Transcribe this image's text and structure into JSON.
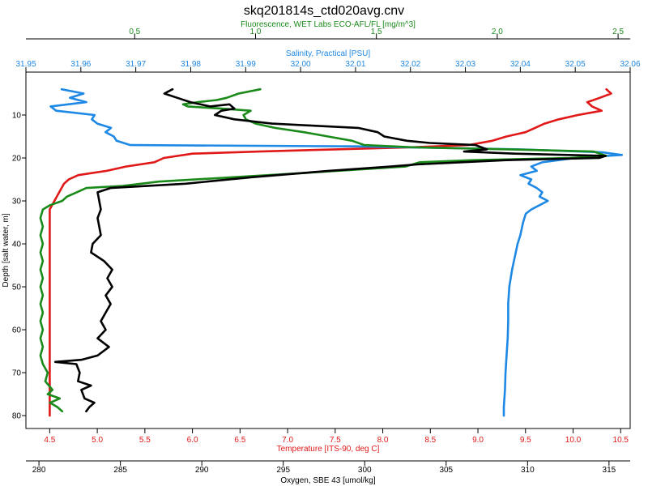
{
  "chart_data": {
    "type": "line",
    "title": "skq201814s_ctd020avg.cnv",
    "colors": {
      "fluorescence": "#1a8a1a",
      "salinity": "#1e88e5",
      "temperature": "#e01818",
      "oxygen": "#000000"
    },
    "axes": {
      "depth": {
        "label": "Depth [salt water, m]",
        "range": [
          0,
          83
        ],
        "reversed": true,
        "ticks": [
          10,
          20,
          30,
          40,
          50,
          60,
          70,
          80
        ],
        "tick_labels": [
          "10",
          "20",
          "30",
          "40",
          "50",
          "60",
          "70",
          "80"
        ]
      },
      "fluorescence": {
        "label": "Fluorescence, WET Labs ECO-AFL/FL [mg/m^3]",
        "range": [
          0.05,
          2.55
        ],
        "ticks": [
          0.5,
          1.0,
          1.5,
          2.0,
          2.5
        ],
        "tick_labels": [
          "0.5",
          "1.0",
          "1.5",
          "2.0",
          "2.5"
        ]
      },
      "salinity": {
        "label": "Salinity, Practical [PSU]",
        "range": [
          31.95,
          32.06
        ],
        "ticks": [
          31.95,
          31.96,
          31.97,
          31.98,
          31.99,
          32.0,
          32.01,
          32.02,
          32.03,
          32.04,
          32.05,
          32.06
        ],
        "tick_labels": [
          "31.95",
          "31.96",
          "31.97",
          "31.98",
          "31.99",
          "32.00",
          "32.01",
          "32.02",
          "32.03",
          "32.04",
          "32.05",
          "32.06"
        ]
      },
      "temperature": {
        "label": "Temperature [ITS-90, deg C]",
        "range": [
          4.25,
          10.6
        ],
        "ticks": [
          4.5,
          5.0,
          5.5,
          6.0,
          6.5,
          7.0,
          7.5,
          8.0,
          8.5,
          9.0,
          9.5,
          10.0,
          10.5
        ],
        "tick_labels": [
          "4.5",
          "5.0",
          "5.5",
          "6.0",
          "6.5",
          "7.0",
          "7.5",
          "8.0",
          "8.5",
          "9.0",
          "9.5",
          "10.0",
          "10.5"
        ]
      },
      "oxygen": {
        "label": "Oxygen, SBE 43 [umol/kg]",
        "range": [
          279.2,
          316.3
        ],
        "ticks": [
          280,
          285,
          290,
          295,
          300,
          305,
          310,
          315
        ],
        "tick_labels": [
          "280",
          "285",
          "290",
          "295",
          "300",
          "305",
          "310",
          "315"
        ]
      }
    },
    "series": [
      {
        "key": "temperature",
        "points": [
          [
            10.35,
            4
          ],
          [
            10.4,
            5
          ],
          [
            10.28,
            6
          ],
          [
            10.15,
            7
          ],
          [
            10.2,
            8
          ],
          [
            10.3,
            9
          ],
          [
            10.05,
            10
          ],
          [
            9.85,
            11
          ],
          [
            9.7,
            12
          ],
          [
            9.6,
            13
          ],
          [
            9.5,
            14
          ],
          [
            9.3,
            15
          ],
          [
            9.15,
            16
          ],
          [
            8.9,
            17
          ],
          [
            8.3,
            17.5
          ],
          [
            7.5,
            18
          ],
          [
            6.7,
            18.5
          ],
          [
            6.0,
            19
          ],
          [
            5.7,
            20
          ],
          [
            5.6,
            21
          ],
          [
            5.3,
            22
          ],
          [
            5.1,
            23
          ],
          [
            4.8,
            24
          ],
          [
            4.7,
            25
          ],
          [
            4.65,
            26
          ],
          [
            4.6,
            28
          ],
          [
            4.55,
            30
          ],
          [
            4.5,
            32
          ],
          [
            4.5,
            40
          ],
          [
            4.5,
            50
          ],
          [
            4.5,
            60
          ],
          [
            4.5,
            70
          ],
          [
            4.5,
            80
          ]
        ]
      },
      {
        "key": "salinity",
        "points": [
          [
            31.9565,
            4
          ],
          [
            31.9605,
            5
          ],
          [
            31.958,
            6
          ],
          [
            31.961,
            7
          ],
          [
            31.9545,
            8
          ],
          [
            31.9555,
            9
          ],
          [
            31.9625,
            10
          ],
          [
            31.962,
            11
          ],
          [
            31.963,
            12
          ],
          [
            31.9655,
            13
          ],
          [
            31.9645,
            14
          ],
          [
            31.966,
            15
          ],
          [
            31.9665,
            16
          ],
          [
            31.969,
            17
          ],
          [
            32.01,
            17.3
          ],
          [
            32.04,
            18
          ],
          [
            32.055,
            18.7
          ],
          [
            32.0585,
            19.3
          ],
          [
            32.05,
            20
          ],
          [
            32.044,
            21
          ],
          [
            32.042,
            22
          ],
          [
            32.043,
            23
          ],
          [
            32.04,
            24
          ],
          [
            32.042,
            25
          ],
          [
            32.0415,
            26
          ],
          [
            32.043,
            27
          ],
          [
            32.044,
            28
          ],
          [
            32.0435,
            29
          ],
          [
            32.045,
            30
          ],
          [
            32.0435,
            31
          ],
          [
            32.042,
            32
          ],
          [
            32.041,
            33
          ],
          [
            32.0405,
            35
          ],
          [
            32.04,
            38
          ],
          [
            32.0395,
            40
          ],
          [
            32.039,
            43
          ],
          [
            32.0385,
            46
          ],
          [
            32.038,
            50
          ],
          [
            32.0378,
            54
          ],
          [
            32.0378,
            58
          ],
          [
            32.0377,
            62
          ],
          [
            32.0375,
            66
          ],
          [
            32.0373,
            70
          ],
          [
            32.0372,
            74
          ],
          [
            32.037,
            78
          ],
          [
            32.037,
            80
          ]
        ]
      },
      {
        "key": "fluorescence",
        "points": [
          [
            1.02,
            4
          ],
          [
            0.93,
            5
          ],
          [
            0.88,
            6
          ],
          [
            0.84,
            6.5
          ],
          [
            0.76,
            7
          ],
          [
            0.7,
            7.5
          ],
          [
            0.72,
            8
          ],
          [
            0.86,
            8.5
          ],
          [
            0.98,
            9
          ],
          [
            0.95,
            10
          ],
          [
            0.96,
            11
          ],
          [
            1.0,
            12
          ],
          [
            1.08,
            13
          ],
          [
            1.2,
            14
          ],
          [
            1.3,
            15
          ],
          [
            1.4,
            16
          ],
          [
            1.45,
            17
          ],
          [
            1.65,
            17.5
          ],
          [
            2.05,
            18
          ],
          [
            2.4,
            18.5
          ],
          [
            2.45,
            19.5
          ],
          [
            2.3,
            20
          ],
          [
            1.9,
            20.5
          ],
          [
            1.68,
            21
          ],
          [
            1.62,
            22
          ],
          [
            1.2,
            23.5
          ],
          [
            0.9,
            24.5
          ],
          [
            0.6,
            25.5
          ],
          [
            0.45,
            26.5
          ],
          [
            0.3,
            27
          ],
          [
            0.26,
            28
          ],
          [
            0.22,
            29
          ],
          [
            0.2,
            30
          ],
          [
            0.15,
            31
          ],
          [
            0.12,
            32
          ],
          [
            0.11,
            34
          ],
          [
            0.12,
            36
          ],
          [
            0.11,
            38
          ],
          [
            0.12,
            40
          ],
          [
            0.11,
            42
          ],
          [
            0.12,
            44
          ],
          [
            0.11,
            46
          ],
          [
            0.12,
            48
          ],
          [
            0.11,
            50
          ],
          [
            0.12,
            52
          ],
          [
            0.11,
            54
          ],
          [
            0.12,
            56
          ],
          [
            0.11,
            58
          ],
          [
            0.12,
            60
          ],
          [
            0.11,
            62
          ],
          [
            0.12,
            64
          ],
          [
            0.11,
            66
          ],
          [
            0.12,
            68
          ],
          [
            0.14,
            70
          ],
          [
            0.13,
            72
          ],
          [
            0.16,
            74
          ],
          [
            0.14,
            75
          ],
          [
            0.19,
            76
          ],
          [
            0.15,
            77
          ],
          [
            0.18,
            78
          ],
          [
            0.2,
            79
          ]
        ]
      },
      {
        "key": "oxygen",
        "points": [
          [
            288.2,
            4
          ],
          [
            287.7,
            5
          ],
          [
            288.5,
            6
          ],
          [
            289.3,
            7
          ],
          [
            290.5,
            8
          ],
          [
            291.7,
            7.5
          ],
          [
            292.0,
            8.5
          ],
          [
            291.2,
            9
          ],
          [
            290.8,
            10
          ],
          [
            292.0,
            11
          ],
          [
            294.3,
            12
          ],
          [
            297.0,
            12.5
          ],
          [
            299.6,
            13
          ],
          [
            300.8,
            14
          ],
          [
            301.2,
            15
          ],
          [
            302.6,
            16
          ],
          [
            304.0,
            16.5
          ],
          [
            306.8,
            17
          ],
          [
            307.5,
            18
          ],
          [
            306.1,
            18.5
          ],
          [
            309.2,
            19
          ],
          [
            314.8,
            19.5
          ],
          [
            314.4,
            20
          ],
          [
            308.7,
            20.5
          ],
          [
            303.2,
            21.5
          ],
          [
            301.6,
            22
          ],
          [
            297.8,
            23
          ],
          [
            293.0,
            24.5
          ],
          [
            289.0,
            26
          ],
          [
            284.4,
            27
          ],
          [
            283.6,
            28
          ],
          [
            283.7,
            30
          ],
          [
            283.8,
            32
          ],
          [
            283.6,
            34
          ],
          [
            283.7,
            36
          ],
          [
            283.8,
            38
          ],
          [
            283.3,
            40
          ],
          [
            283.2,
            42
          ],
          [
            284.0,
            44
          ],
          [
            284.5,
            46
          ],
          [
            284.2,
            48
          ],
          [
            284.5,
            50
          ],
          [
            284.1,
            52
          ],
          [
            284.4,
            54
          ],
          [
            284.1,
            56
          ],
          [
            283.8,
            58
          ],
          [
            284.1,
            60
          ],
          [
            283.6,
            62
          ],
          [
            284.3,
            64
          ],
          [
            283.6,
            66
          ],
          [
            282.6,
            67
          ],
          [
            281.0,
            67.5
          ],
          [
            282.3,
            68
          ],
          [
            282.5,
            70
          ],
          [
            282.4,
            72
          ],
          [
            283.2,
            73
          ],
          [
            282.6,
            74
          ],
          [
            282.8,
            76
          ],
          [
            283.4,
            77
          ],
          [
            283.1,
            78
          ],
          [
            282.9,
            79
          ]
        ]
      }
    ]
  }
}
